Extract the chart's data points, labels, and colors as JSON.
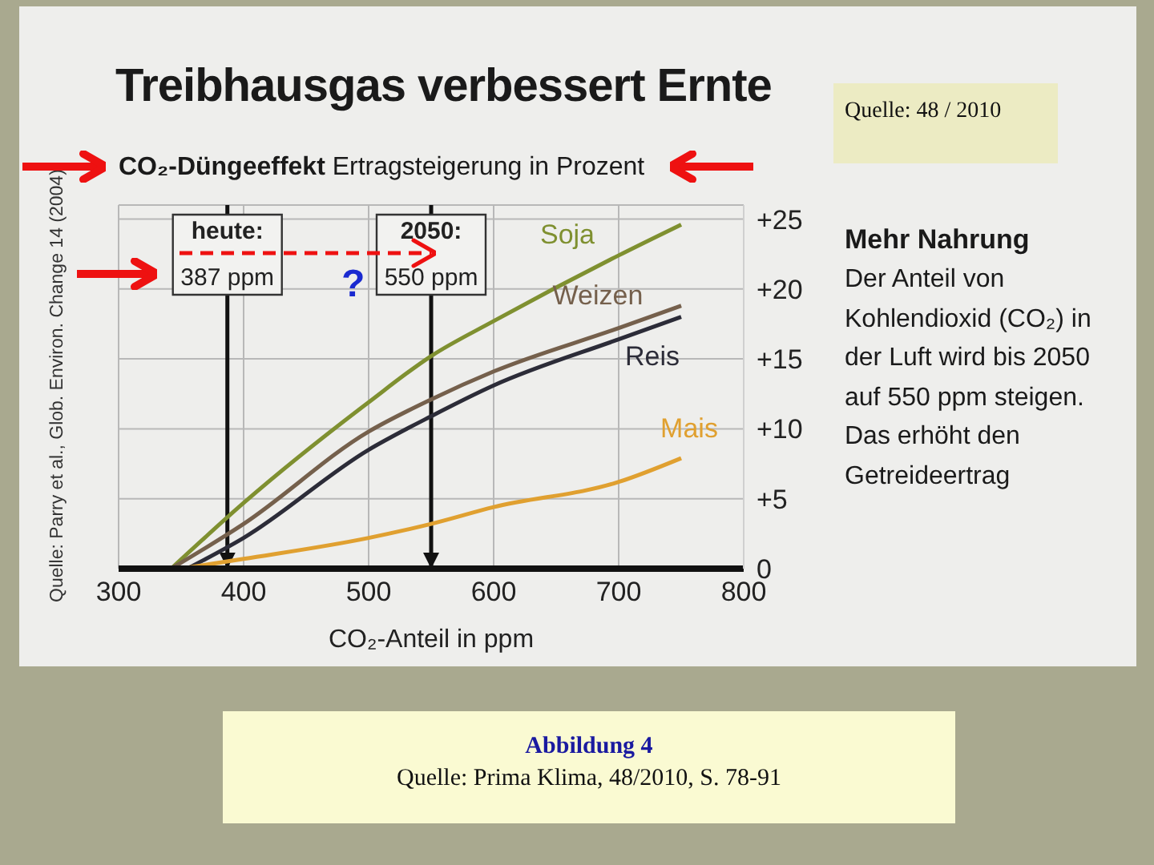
{
  "chart_data": {
    "type": "line",
    "title": "Treibhausgas verbessert Ernte",
    "subtitle": "CO₂-Düngeeffekt Ertragsteigerung in Prozent",
    "xlabel": "CO₂-Anteil in ppm",
    "x": [
      342,
      400,
      500,
      550,
      600,
      700,
      750
    ],
    "series": [
      {
        "name": "Soja",
        "color": "#7f9030",
        "values": [
          0,
          4.7,
          11.9,
          15.2,
          17.7,
          22.4,
          24.6
        ]
      },
      {
        "name": "Weizen",
        "color": "#75604c",
        "values": [
          0,
          3.2,
          9.8,
          12.1,
          14.1,
          17.2,
          18.8
        ]
      },
      {
        "name": "Reis",
        "color": "#2c2c38",
        "x": [
          355,
          400,
          500,
          550,
          600,
          700,
          750
        ],
        "values": [
          0,
          2.2,
          8.5,
          10.9,
          13.1,
          16.4,
          18.0
        ]
      },
      {
        "name": "Mais",
        "color": "#e0a030",
        "x": [
          350,
          400,
          500,
          550,
          600,
          700,
          750
        ],
        "values": [
          0,
          0.7,
          2.2,
          3.2,
          4.4,
          6.2,
          7.9
        ]
      }
    ],
    "xlim": [
      300,
      800
    ],
    "xticks": [
      300,
      400,
      500,
      600,
      700,
      800
    ],
    "ylim": [
      0,
      26
    ],
    "yticks": [
      0,
      {
        "value": 5,
        "label": "+5"
      },
      {
        "value": 10,
        "label": "+10"
      },
      {
        "value": 15,
        "label": "+15"
      },
      {
        "value": 20,
        "label": "+20"
      },
      {
        "value": 25,
        "label": "+25"
      }
    ],
    "grid": true,
    "legend": false,
    "marker": "none",
    "line_style": "solid",
    "ref_lines": [
      {
        "axis": "x",
        "value": 387,
        "label": "heute: 387 ppm",
        "color": "#111111"
      },
      {
        "axis": "x",
        "value": 550,
        "label": "2050: 550 ppm",
        "color": "#111111"
      }
    ],
    "annotations": [
      "Quelle: Parry et al., Glob. Environ. Change 14 (2004)",
      "?",
      "Mehr Nahrung",
      "Der Anteil von Kohlendioxid (CO₂) in der Luft wird bis 2050 auf 550 ppm steigen. Das erhöht den Getreideertrag",
      "Quelle: 48 / 2010",
      "Abbildung 4",
      "Quelle: Prima Klima, 48/2010, S. 78-91"
    ]
  }
}
